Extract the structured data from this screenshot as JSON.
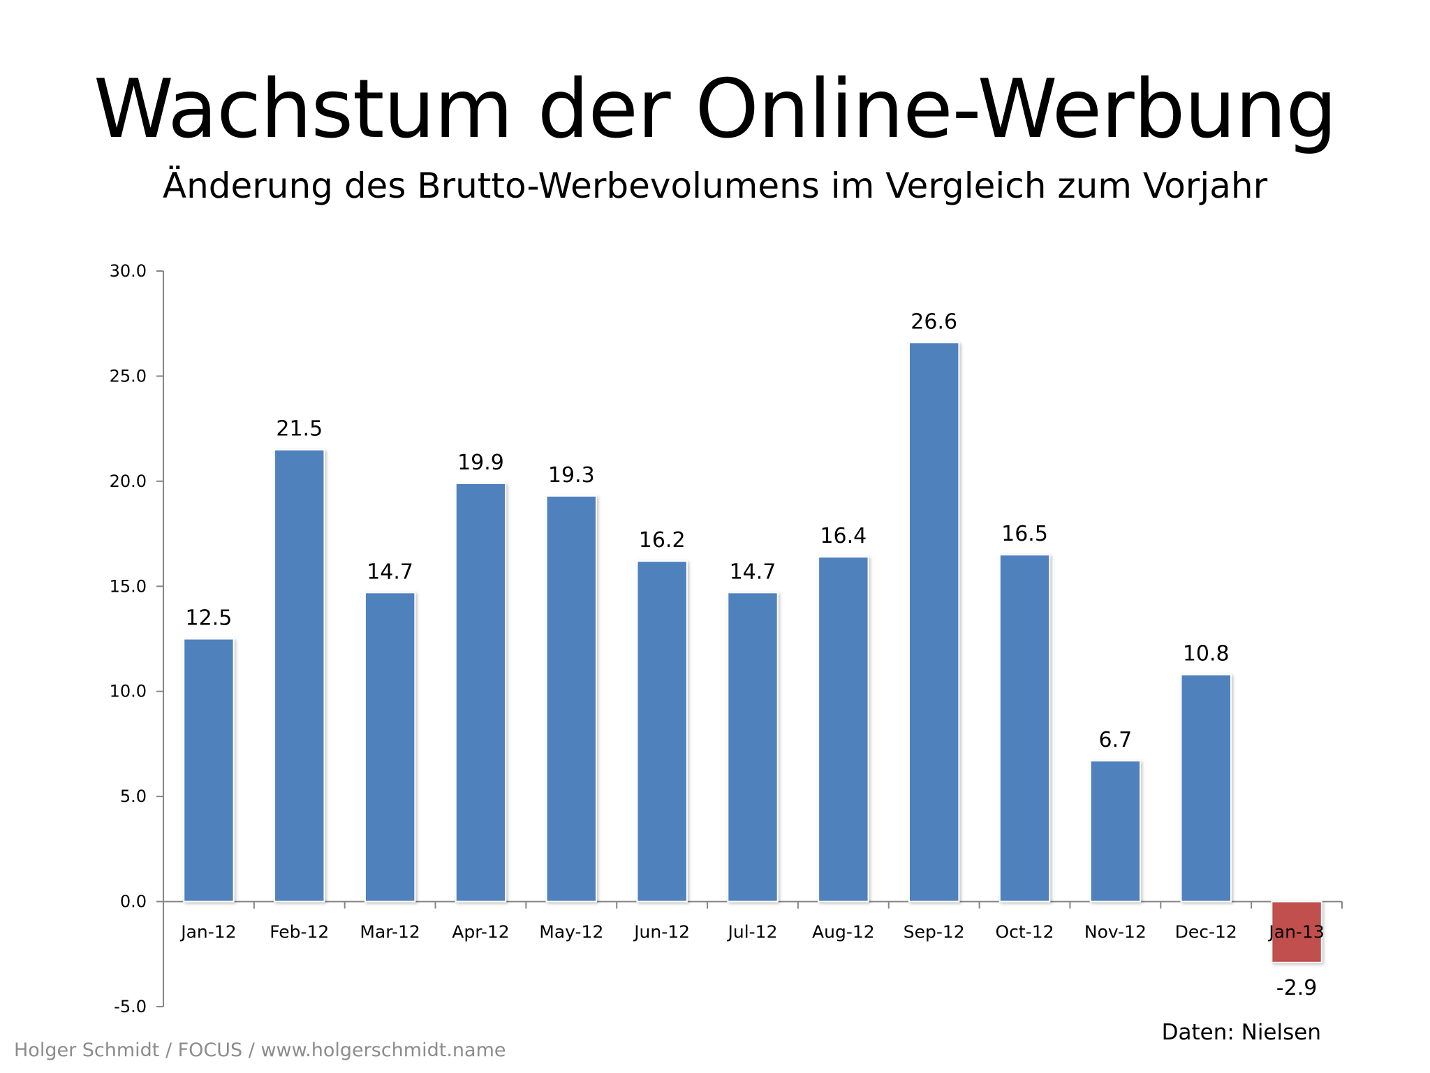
{
  "chart_data": {
    "type": "bar",
    "title": "Wachstum der Online-Werbung",
    "subtitle": "Änderung des Brutto-Werbevolumens im Vergleich zum Vorjahr",
    "categories": [
      "Jan-12",
      "Feb-12",
      "Mar-12",
      "Apr-12",
      "May-12",
      "Jun-12",
      "Jul-12",
      "Aug-12",
      "Sep-12",
      "Oct-12",
      "Nov-12",
      "Dec-12",
      "Jan-13"
    ],
    "values": [
      12.5,
      21.5,
      14.7,
      19.9,
      19.3,
      16.2,
      14.7,
      16.4,
      26.6,
      16.5,
      6.7,
      10.8,
      -2.9
    ],
    "value_labels": [
      "12.5",
      "21.5",
      "14.7",
      "19.9",
      "19.3",
      "16.2",
      "14.7",
      "16.4",
      "26.6",
      "16.5",
      "6.7",
      "10.8",
      "-2.9"
    ],
    "ylim": [
      -5,
      30
    ],
    "yticks": [
      -5,
      0,
      5,
      10,
      15,
      20,
      25,
      30
    ],
    "ytick_labels": [
      "-5.0",
      "0.0",
      "5.0",
      "10.0",
      "15.0",
      "20.0",
      "25.0",
      "30.0"
    ],
    "xlabel": "",
    "ylabel": "",
    "grid": false,
    "legend": "none",
    "colors": {
      "positive": "#4f81bd",
      "negative": "#c0504d",
      "axis": "#868686"
    }
  },
  "footer": {
    "source_credit": "Holger Schmidt / FOCUS / www.holgerschmidt.name",
    "data_source": "Daten: Nielsen"
  }
}
